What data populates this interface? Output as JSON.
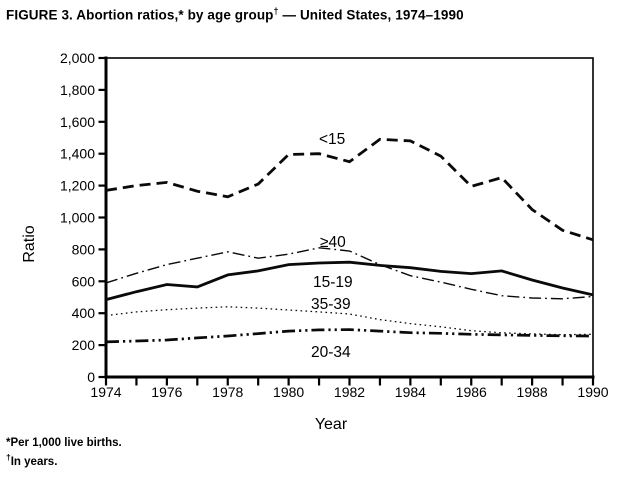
{
  "header": {
    "title_prefix": "FIGURE 3. Abortion ratios,* by age group",
    "title_dagger": "†",
    "title_suffix": " — United States, 1974–1990"
  },
  "footnotes": {
    "first_marker": "*",
    "first_text": "Per 1,000 live births.",
    "second_marker": "†",
    "second_text": "In years."
  },
  "chart_data": {
    "type": "line",
    "title": "FIGURE 3. Abortion ratios, by age group — United States, 1974–1990",
    "xlabel": "Year",
    "ylabel": "Ratio",
    "x_range": [
      1974,
      1990
    ],
    "y_range": [
      0,
      2000
    ],
    "grid": "off",
    "frame": "box",
    "legend": "in-plot-labels",
    "x": [
      1974,
      1975,
      1976,
      1977,
      1978,
      1979,
      1980,
      1981,
      1982,
      1983,
      1984,
      1985,
      1986,
      1987,
      1988,
      1989,
      1990
    ],
    "x_ticks": [
      {
        "value": 1974,
        "label": "1974"
      },
      {
        "value": 1975,
        "label": ""
      },
      {
        "value": 1976,
        "label": "1976"
      },
      {
        "value": 1977,
        "label": ""
      },
      {
        "value": 1978,
        "label": "1978"
      },
      {
        "value": 1979,
        "label": ""
      },
      {
        "value": 1980,
        "label": "1980"
      },
      {
        "value": 1981,
        "label": ""
      },
      {
        "value": 1982,
        "label": "1982"
      },
      {
        "value": 1983,
        "label": ""
      },
      {
        "value": 1984,
        "label": "1984"
      },
      {
        "value": 1985,
        "label": ""
      },
      {
        "value": 1986,
        "label": "1986"
      },
      {
        "value": 1987,
        "label": ""
      },
      {
        "value": 1988,
        "label": "1988"
      },
      {
        "value": 1989,
        "label": ""
      },
      {
        "value": 1990,
        "label": "1990"
      }
    ],
    "y_ticks": [
      {
        "value": 0,
        "label": "0"
      },
      {
        "value": 200,
        "label": "200"
      },
      {
        "value": 400,
        "label": "400"
      },
      {
        "value": 600,
        "label": "600"
      },
      {
        "value": 800,
        "label": "800"
      },
      {
        "value": 1000,
        "label": "1,000"
      },
      {
        "value": 1200,
        "label": "1,200"
      },
      {
        "value": 1400,
        "label": "1,400"
      },
      {
        "value": 1600,
        "label": "1,600"
      },
      {
        "value": 1800,
        "label": "1,800"
      },
      {
        "value": 2000,
        "label": "2,000"
      }
    ],
    "series": [
      {
        "name": "<15",
        "slug": "lt15",
        "style": "dashed",
        "label_pos": [
          319,
          144
        ],
        "values": [
          1170,
          1200,
          1220,
          1165,
          1130,
          1210,
          1395,
          1400,
          1350,
          1490,
          1480,
          1385,
          1195,
          1250,
          1050,
          920,
          860
        ]
      },
      {
        "name": "≥40",
        "slug": "ge40",
        "style": "dash-dot",
        "label_pos": [
          320,
          247
        ],
        "values": [
          590,
          650,
          705,
          745,
          785,
          745,
          770,
          810,
          790,
          705,
          635,
          595,
          550,
          510,
          495,
          490,
          505
        ]
      },
      {
        "name": "15-19",
        "slug": "15-19",
        "style": "solid",
        "label_pos": [
          313,
          287
        ],
        "values": [
          485,
          535,
          580,
          565,
          640,
          665,
          705,
          715,
          720,
          700,
          685,
          662,
          648,
          665,
          608,
          558,
          515
        ]
      },
      {
        "name": "35-39",
        "slug": "35-39",
        "style": "dotted",
        "label_pos": [
          311,
          309
        ],
        "values": [
          385,
          408,
          422,
          432,
          440,
          432,
          420,
          408,
          395,
          360,
          335,
          315,
          290,
          277,
          270,
          265,
          268
        ]
      },
      {
        "name": "20-34",
        "slug": "20-34",
        "style": "dash-dot-dot",
        "label_pos": [
          311,
          357
        ],
        "values": [
          220,
          226,
          232,
          245,
          257,
          272,
          288,
          295,
          297,
          288,
          278,
          274,
          268,
          264,
          261,
          258,
          257
        ]
      }
    ]
  }
}
